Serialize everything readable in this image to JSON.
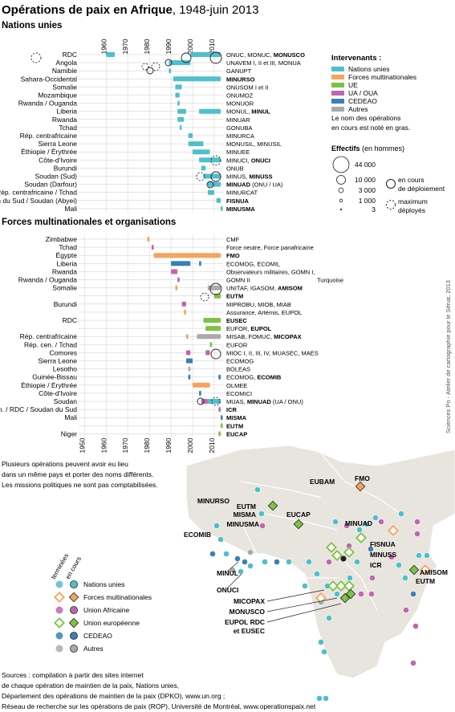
{
  "title": {
    "main": "Opérations de paix en Afrique",
    "suffix": ", 1948-juin 2013"
  },
  "colors": {
    "un": "#4fbfcc",
    "multinational": "#f7a35c",
    "ue": "#7dc242",
    "ua": "#c066b0",
    "cedeao": "#3b7fb5",
    "autres": "#aaaaaa",
    "axis": "#231f20",
    "land": "#e8e4de"
  },
  "chart_data": [
    {
      "type": "gantt",
      "title": "Nations unies",
      "x": [
        1948,
        2013
      ],
      "axis_ticks": [
        "1960",
        "1970",
        "1980",
        "1990",
        "2000",
        "2010"
      ],
      "axis_tick_values": [
        1960,
        1970,
        1980,
        1990,
        2000,
        2010
      ],
      "rows": [
        {
          "country": "RDC",
          "label": "ONUC, MONUC, ",
          "label_bold": "MONUSCO",
          "bars": [
            {
              "start": 1960,
              "end": 1964,
              "group": "un"
            },
            {
              "start": 1999,
              "end": 2013,
              "group": "un"
            }
          ]
        },
        {
          "country": "Angola",
          "label": "UNAVEM I, II et III, MONUA",
          "bars": [
            {
              "start": 1989,
              "end": 1999,
              "group": "un"
            }
          ]
        },
        {
          "country": "Namibie",
          "label": "GANUPT",
          "bars": [
            {
              "start": 1989,
              "end": 1990,
              "group": "un"
            }
          ]
        },
        {
          "country": "Sahara-Occidental",
          "label": "",
          "label_bold": "MINURSO",
          "bars": [
            {
              "start": 1991,
              "end": 2013,
              "group": "un"
            }
          ]
        },
        {
          "country": "Somalie",
          "label": "ONUSOM I et II",
          "bars": [
            {
              "start": 1992,
              "end": 1995,
              "group": "un"
            }
          ]
        },
        {
          "country": "Mozambique",
          "label": "ONUMOZ",
          "bars": [
            {
              "start": 1992,
              "end": 1994,
              "group": "un"
            }
          ]
        },
        {
          "country": "Rwanda / Ouganda",
          "label": "MONUOR",
          "bars": [
            {
              "start": 1993,
              "end": 1994,
              "group": "un"
            }
          ]
        },
        {
          "country": "Liberia",
          "label": "MONUL, ",
          "label_bold": "MINUL",
          "bars": [
            {
              "start": 1993,
              "end": 1997,
              "group": "un"
            },
            {
              "start": 2003,
              "end": 2013,
              "group": "un"
            }
          ]
        },
        {
          "country": "Rwanda",
          "label": "MINUAR",
          "bars": [
            {
              "start": 1993,
              "end": 1996,
              "group": "un"
            }
          ]
        },
        {
          "country": "Tchad",
          "label": "GONUBA",
          "bars": [
            {
              "start": 1994,
              "end": 1994.4,
              "group": "un"
            }
          ]
        },
        {
          "country": "Rép. centrafricaine",
          "label": "MINURCA",
          "bars": [
            {
              "start": 1998,
              "end": 2000,
              "group": "un"
            }
          ]
        },
        {
          "country": "Sierra Leone",
          "label": "MONUSIL, MINUSIL",
          "bars": [
            {
              "start": 1998,
              "end": 2005,
              "group": "un"
            }
          ]
        },
        {
          "country": "Éthiopie / Érythrée",
          "label": "MINUEE",
          "bars": [
            {
              "start": 2000,
              "end": 2008,
              "group": "un"
            }
          ]
        },
        {
          "country": "Côte-d'Ivoire",
          "label": "MINUCI, ",
          "label_bold": "ONUCI",
          "bars": [
            {
              "start": 2003,
              "end": 2013,
              "group": "un"
            }
          ]
        },
        {
          "country": "Burundi",
          "label": "ONUB",
          "bars": [
            {
              "start": 2004,
              "end": 2006,
              "group": "un"
            }
          ]
        },
        {
          "country": "Soudan (Sud)",
          "label": "MINUS, ",
          "label_bold": "MINUSS",
          "bars": [
            {
              "start": 2005,
              "end": 2013,
              "group": "un"
            }
          ]
        },
        {
          "country": "Soudan (Darfour)",
          "label": "",
          "label_bold": "MINUAD",
          "label_after": " (ONU / UA)",
          "bars": [
            {
              "start": 2007,
              "end": 2013,
              "group": "un"
            }
          ]
        },
        {
          "country": "Rép. centrafricaine / Tchad",
          "label": "MINURCAT",
          "bars": [
            {
              "start": 2007,
              "end": 2010,
              "group": "un"
            }
          ]
        },
        {
          "country": "Soudan du Sud / Soudan (Abyei)",
          "label": "",
          "label_bold": "FISNUA",
          "bars": [
            {
              "start": 2011,
              "end": 2013,
              "group": "un"
            }
          ]
        },
        {
          "country": "Mali",
          "label": "",
          "label_bold": "MINUSMA",
          "bars": [
            {
              "start": 2013,
              "end": 2013.5,
              "group": "un"
            }
          ]
        }
      ]
    },
    {
      "type": "gantt",
      "title": "Forces multinationales et organisations",
      "x": [
        1948,
        2013
      ],
      "axis_ticks": [
        "1950",
        "1960",
        "1970",
        "1980",
        "1990",
        "2000",
        "2010"
      ],
      "axis_tick_values": [
        1950,
        1960,
        1970,
        1980,
        1990,
        2000,
        2010
      ],
      "rows": [
        {
          "country": "Zimbabwe",
          "label": "CMF",
          "bars": [
            {
              "start": 1979,
              "end": 1980,
              "group": "multinational"
            }
          ]
        },
        {
          "country": "Tchad",
          "label": "Force neutre, Force panafricaine",
          "bars": [
            {
              "start": 1981,
              "end": 1982,
              "group": "ua"
            }
          ]
        },
        {
          "country": "Égypte",
          "label": "",
          "label_bold": "FMO",
          "bars": [
            {
              "start": 1982,
              "end": 2013,
              "group": "multinational"
            }
          ]
        },
        {
          "country": "Liberia",
          "label": "ECOMOG, ECOMIL",
          "bars": [
            {
              "start": 1990,
              "end": 1999,
              "group": "cedeao"
            },
            {
              "start": 2003,
              "end": 2004,
              "group": "cedeao"
            }
          ]
        },
        {
          "country": "Rwanda",
          "label": "Observateurs militaires, GOMN I,",
          "bars": [
            {
              "start": 1990,
              "end": 1993,
              "group": "ua"
            }
          ]
        },
        {
          "country": "Rwanda / Ouganda",
          "label": "GOMN II",
          "label_right": "Turquoise",
          "bars": [
            {
              "start": 1993,
              "end": 1994,
              "group": "ua"
            }
          ]
        },
        {
          "country": "Somalie",
          "label": "UNITAF, IGASOM, ",
          "label_bold": "AMISOM",
          "bars": [
            {
              "start": 1992,
              "end": 1993,
              "group": "multinational"
            },
            {
              "start": 2007,
              "end": 2013,
              "group": "autres"
            }
          ]
        },
        {
          "country": "",
          "label": "",
          "label_bold": "EUTM",
          "bars": [
            {
              "start": 2010,
              "end": 2013,
              "group": "ue"
            }
          ]
        },
        {
          "country": "Burundi",
          "label": "MIPROBU, MIOB, MIAB",
          "bars": [
            {
              "start": 1995,
              "end": 1997,
              "group": "ua"
            }
          ]
        },
        {
          "country": "",
          "label": "Assurance, Artémis, EUPOL",
          "bars": [
            {
              "start": 1996,
              "end": 1997,
              "group": "multinational"
            }
          ]
        },
        {
          "country": "RDC",
          "label": "",
          "label_bold": "EUSEC",
          "bars": [
            {
              "start": 2005,
              "end": 2013,
              "group": "ue"
            }
          ]
        },
        {
          "country": "",
          "label": "EUFOR, ",
          "label_bold": "EUPOL",
          "bars": [
            {
              "start": 2006,
              "end": 2013,
              "group": "ue"
            }
          ]
        },
        {
          "country": "Rép. centrafricaine",
          "label": "MISAB, FOMUC, ",
          "label_bold": "MICOPAX",
          "bars": [
            {
              "start": 1997,
              "end": 1998,
              "group": "multinational"
            },
            {
              "start": 2002,
              "end": 2013,
              "group": "autres"
            }
          ]
        },
        {
          "country": "Rép. cen. / Tchad",
          "label": "EUFOR",
          "bars": [
            {
              "start": 2008,
              "end": 2009,
              "group": "ue"
            }
          ]
        },
        {
          "country": "Comores",
          "label": "MIOC I, II, III, IV, MUASEC, MAES",
          "bars": [
            {
              "start": 1997,
              "end": 1999,
              "group": "ua"
            },
            {
              "start": 2006,
              "end": 2008,
              "group": "ua"
            }
          ]
        },
        {
          "country": "Sierra Leone",
          "label": "ECOMOG",
          "bars": [
            {
              "start": 1997,
              "end": 2000,
              "group": "cedeao"
            }
          ]
        },
        {
          "country": "Lesotho",
          "label": "BOLEAS",
          "bars": [
            {
              "start": 1998,
              "end": 1999,
              "group": "autres"
            }
          ]
        },
        {
          "country": "Guinée-Bissau",
          "label": "ECOMOG, ",
          "label_bold": "ECOMIB",
          "bars": [
            {
              "start": 1998,
              "end": 1999,
              "group": "cedeao"
            },
            {
              "start": 2012,
              "end": 2013,
              "group": "cedeao"
            }
          ]
        },
        {
          "country": "Éthiopie / Érythrée",
          "label": "OLMEE",
          "bars": [
            {
              "start": 2000,
              "end": 2008,
              "group": "multinational"
            }
          ]
        },
        {
          "country": "Côte-d'Ivoire",
          "label": "ECOMICI",
          "bars": [
            {
              "start": 2003,
              "end": 2004,
              "group": "cedeao"
            }
          ]
        },
        {
          "country": "Soudan",
          "label": "MUAS, ",
          "label_bold": "MINUAD",
          "label_after": " (UA / ONU)",
          "bars": [
            {
              "start": 2004,
              "end": 2007,
              "group": "ua"
            },
            {
              "start": 2007,
              "end": 2013,
              "group": "un"
            }
          ]
        },
        {
          "country": "Oug. / Rép. cen. / RDC / Soudan du Sud",
          "label": "",
          "label_bold": "ICR",
          "bars": [
            {
              "start": 2012,
              "end": 2013,
              "group": "ua"
            }
          ]
        },
        {
          "country": "Mali",
          "label": "",
          "label_bold": "MISMA",
          "bars": [
            {
              "start": 2013,
              "end": 2013.5,
              "group": "cedeao"
            }
          ]
        },
        {
          "country": "",
          "label": "",
          "label_bold": "EUTM",
          "bars": [
            {
              "start": 2013,
              "end": 2013.5,
              "group": "ue"
            }
          ]
        },
        {
          "country": "Niger",
          "label": "",
          "label_bold": "EUCAP",
          "bars": [
            {
              "start": 2012,
              "end": 2013,
              "group": "ue"
            }
          ]
        }
      ]
    }
  ],
  "legend_intervenants": {
    "title": "Intervenants :",
    "items": [
      {
        "label": "Nations unies",
        "group": "un"
      },
      {
        "label": "Forces multinationales",
        "group": "multinational"
      },
      {
        "label": "UE",
        "group": "ue"
      },
      {
        "label": "UA / OUA",
        "group": "ua"
      },
      {
        "label": "CEDEAO",
        "group": "cedeao"
      },
      {
        "label": "Autres",
        "group": "autres"
      }
    ],
    "note": "Le nom des opérations en cours est noté en gras."
  },
  "legend_effectifs": {
    "title": "Effectifs",
    "title_suffix": " (en hommes)",
    "values": [
      "44 000",
      "10 000",
      "3 000",
      "1 000",
      "3"
    ],
    "en_cours": "en cours de déploiement",
    "maximum": "maximum déployés"
  },
  "note": "Plusieurs opérations peuvent avoir eu lieu dans un même pays et porter des noms différents. Les missions politiques ne sont pas comptabilisées.",
  "map_legend": {
    "col1": "terminées",
    "col2": "en cours",
    "items": [
      {
        "label": "Nations unies",
        "group": "un",
        "shape": "circle"
      },
      {
        "label": "Forces multinationales",
        "group": "multinational",
        "shape": "diamond"
      },
      {
        "label": "Union Africaine",
        "group": "ua",
        "shape": "circle"
      },
      {
        "label": "Union européenne",
        "group": "ue",
        "shape": "diamond"
      },
      {
        "label": "CEDEAO",
        "group": "cedeao",
        "shape": "circle"
      },
      {
        "label": "Autres",
        "group": "autres",
        "shape": "circle"
      }
    ]
  },
  "map_labels": [
    "EUBAM",
    "FMO",
    "MINURSO",
    "EUTM",
    "MISMA",
    "MINUSMA",
    "EUCAP",
    "MINUAD",
    "ECOMIB",
    "FISNUA",
    "MINUSS",
    "ICR",
    "AMISOM",
    "EUTM",
    "MINUL",
    "ONUCI",
    "MICOPAX",
    "MONUSCO",
    "EUPOL RDC",
    "et EUSEC"
  ],
  "credit": "Sciences Po - Atelier de cartographie pour le Sénat, 2013",
  "sources": "Sources : compilation à partir des sites internet\nde chaque opération de maintien de la paix, Nations unies,\nDépartement des opérations de maintien de la paix (DPKO), www.un.org ;\nRéseau de recherche sur les opérations de paix (ROP), Université de Montréal, www.operationspaix.net"
}
